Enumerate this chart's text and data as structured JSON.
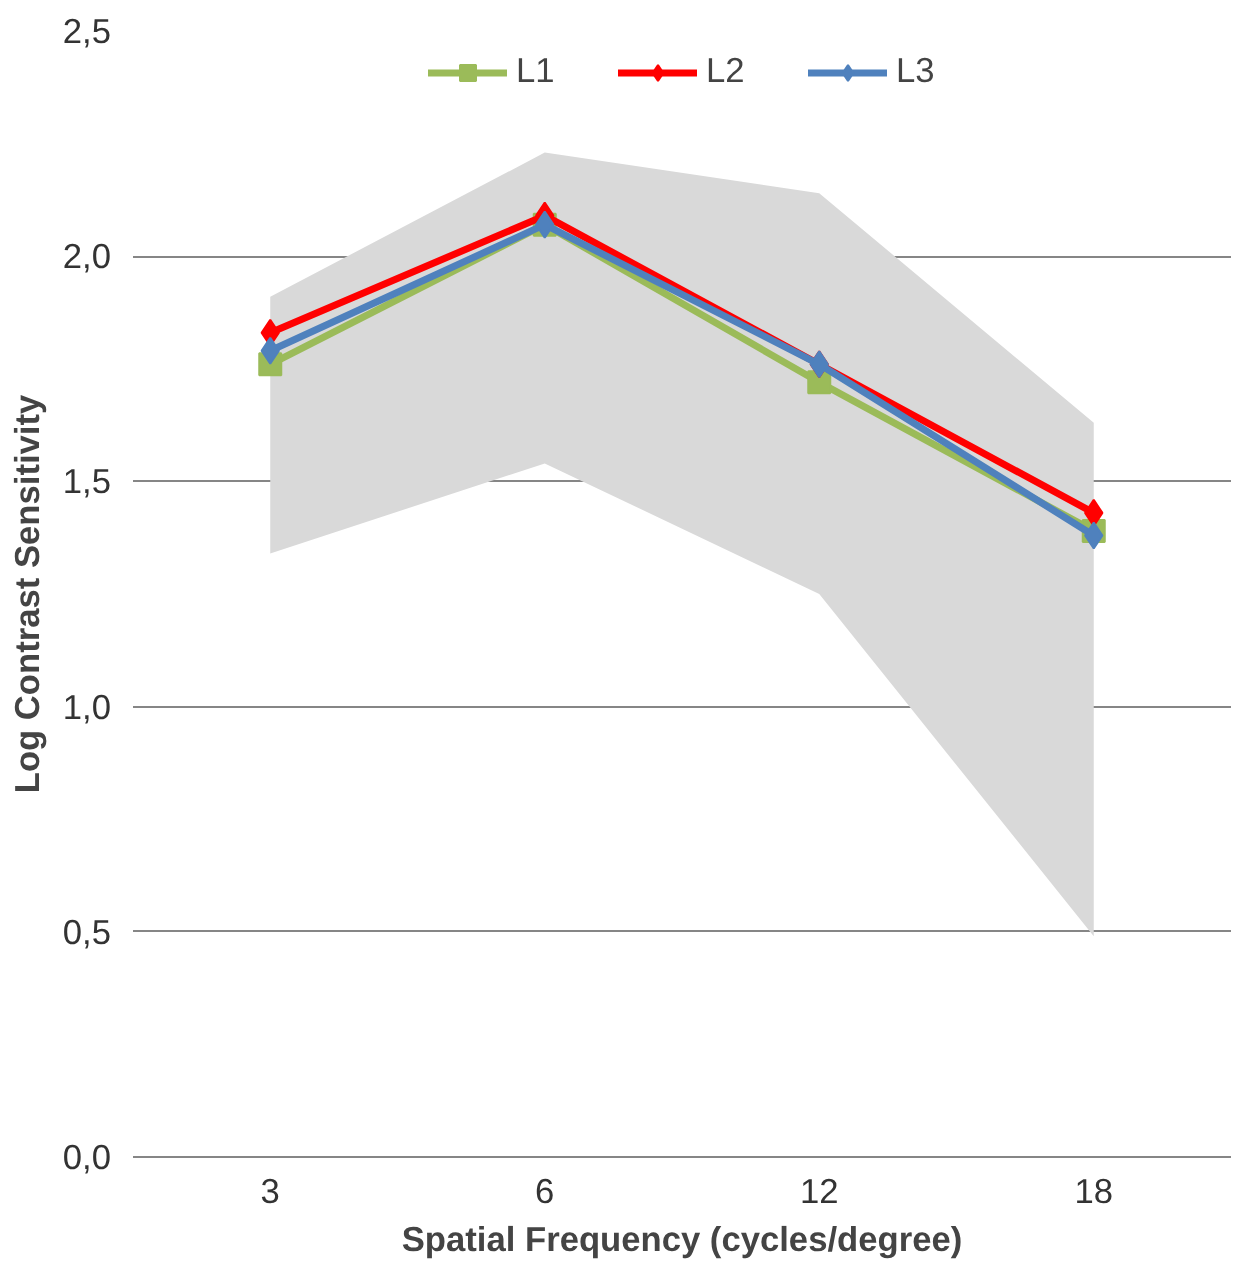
{
  "chart_data": {
    "type": "line",
    "xlabel": "Spatial Frequency (cycles/degree)",
    "ylabel": "Log Contrast Sensitivity",
    "categories": [
      "3",
      "6",
      "12",
      "18"
    ],
    "series": [
      {
        "name": "L1",
        "color": "#9bbb59",
        "marker": "square",
        "values": [
          1.76,
          2.07,
          1.72,
          1.39
        ],
        "lower": [
          1.34,
          1.54,
          1.25,
          0.49
        ],
        "upper": [
          1.91,
          2.23,
          2.14,
          1.63
        ]
      },
      {
        "name": "L2",
        "color": "#ff0000",
        "marker": "diamond",
        "values": [
          1.83,
          2.09,
          1.76,
          1.43
        ]
      },
      {
        "name": "L3",
        "color": "#4f81bd",
        "marker": "diamond",
        "values": [
          1.79,
          2.07,
          1.76,
          1.38
        ]
      }
    ],
    "ylim": [
      0,
      2.5
    ],
    "yticks": [
      {
        "value": 0,
        "label": "0,0"
      },
      {
        "value": 0.5,
        "label": "0,5"
      },
      {
        "value": 1,
        "label": "1,0"
      },
      {
        "value": 1.5,
        "label": "1,5"
      },
      {
        "value": 2,
        "label": "2,0"
      },
      {
        "value": 2.5,
        "label": "2,5"
      }
    ],
    "grid": "y",
    "legend": "top",
    "line_style": "solid"
  }
}
